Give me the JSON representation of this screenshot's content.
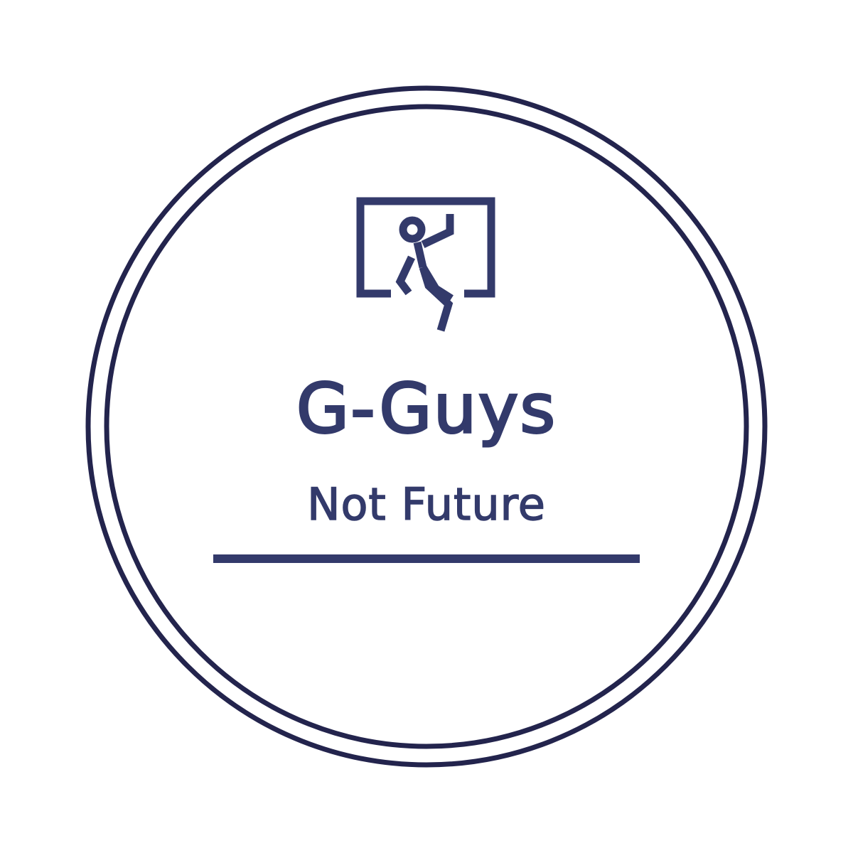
{
  "logo": {
    "brand_name": "G-Guys",
    "tagline": "Not Future",
    "emblem_icon": "person-climbing-out-of-window-icon"
  },
  "colors": {
    "background": "#ffffff",
    "ring": "#23244d",
    "brand": "#333a6b"
  }
}
